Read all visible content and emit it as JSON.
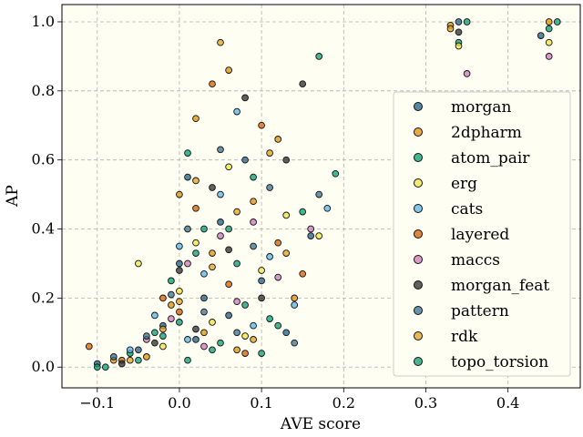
{
  "chart_data": {
    "type": "scatter",
    "title": "",
    "xlabel": "AVE score",
    "ylabel": "AP",
    "xlim": [
      -0.143,
      0.488
    ],
    "ylim": [
      -0.06,
      1.05
    ],
    "xticks": [
      -0.1,
      0.0,
      0.1,
      0.2,
      0.3,
      0.4
    ],
    "xtick_labels": [
      "−0.1",
      "0.0",
      "0.1",
      "0.2",
      "0.3",
      "0.4"
    ],
    "yticks": [
      0.0,
      0.2,
      0.4,
      0.6,
      0.8,
      1.0
    ],
    "ytick_labels": [
      "0.0",
      "0.2",
      "0.4",
      "0.6",
      "0.8",
      "1.0"
    ],
    "grid": true,
    "background": "#fffef3",
    "legend_position": "right",
    "series": [
      {
        "name": "morgan",
        "color": "#1f5f84",
        "points": [
          [
            -0.1,
            0.01
          ],
          [
            -0.05,
            0.05
          ],
          [
            -0.02,
            0.12
          ],
          [
            0.0,
            0.3
          ],
          [
            0.01,
            0.55
          ],
          [
            0.02,
            0.08
          ],
          [
            0.03,
            0.2
          ],
          [
            0.05,
            0.42
          ],
          [
            0.06,
            0.15
          ],
          [
            0.08,
            0.6
          ],
          [
            0.1,
            0.25
          ],
          [
            0.13,
            0.1
          ],
          [
            0.16,
            0.38
          ],
          [
            0.34,
            1.0
          ],
          [
            0.44,
            0.96
          ]
        ]
      },
      {
        "name": "2dpharm",
        "color": "#de8f05",
        "points": [
          [
            -0.08,
            0.02
          ],
          [
            -0.04,
            0.03
          ],
          [
            -0.01,
            0.18
          ],
          [
            0.0,
            0.5
          ],
          [
            0.02,
            0.72
          ],
          [
            0.03,
            0.1
          ],
          [
            0.04,
            0.33
          ],
          [
            0.06,
            0.86
          ],
          [
            0.07,
            0.05
          ],
          [
            0.09,
            0.48
          ],
          [
            0.12,
            0.66
          ],
          [
            0.14,
            0.2
          ],
          [
            0.33,
            0.99
          ],
          [
            0.45,
            1.0
          ]
        ]
      },
      {
        "name": "atom_pair",
        "color": "#029e73",
        "points": [
          [
            -0.09,
            0.0
          ],
          [
            -0.06,
            0.04
          ],
          [
            -0.03,
            0.1
          ],
          [
            -0.01,
            0.25
          ],
          [
            0.01,
            0.62
          ],
          [
            0.03,
            0.4
          ],
          [
            0.05,
            0.07
          ],
          [
            0.07,
            0.3
          ],
          [
            0.09,
            0.55
          ],
          [
            0.11,
            0.14
          ],
          [
            0.15,
            0.45
          ],
          [
            0.19,
            0.56
          ],
          [
            0.34,
            0.94
          ],
          [
            0.45,
            0.98
          ]
        ]
      },
      {
        "name": "erg",
        "color": "#f0e442",
        "points": [
          [
            -0.05,
            0.3
          ],
          [
            -0.02,
            0.06
          ],
          [
            0.0,
            0.22
          ],
          [
            0.02,
            0.36
          ],
          [
            0.04,
            0.13
          ],
          [
            0.06,
            0.58
          ],
          [
            0.08,
            0.09
          ],
          [
            0.1,
            0.28
          ],
          [
            0.13,
            0.44
          ],
          [
            0.17,
            0.38
          ],
          [
            0.34,
            0.93
          ],
          [
            0.45,
            0.94
          ]
        ]
      },
      {
        "name": "cats",
        "color": "#56b4e9",
        "points": [
          [
            -0.06,
            0.05
          ],
          [
            -0.03,
            0.15
          ],
          [
            0.0,
            0.35
          ],
          [
            0.01,
            0.08
          ],
          [
            0.03,
            0.27
          ],
          [
            0.05,
            0.5
          ],
          [
            0.07,
            0.74
          ],
          [
            0.09,
            0.12
          ],
          [
            0.11,
            0.32
          ],
          [
            0.14,
            0.18
          ],
          [
            0.18,
            0.46
          ]
        ]
      },
      {
        "name": "layered",
        "color": "#d55e00",
        "points": [
          [
            -0.11,
            0.06
          ],
          [
            -0.07,
            0.02
          ],
          [
            -0.02,
            0.2
          ],
          [
            0.0,
            0.16
          ],
          [
            0.02,
            0.46
          ],
          [
            0.04,
            0.82
          ],
          [
            0.06,
            0.24
          ],
          [
            0.08,
            0.04
          ],
          [
            0.1,
            0.7
          ],
          [
            0.12,
            0.36
          ],
          [
            0.15,
            0.27
          ]
        ]
      },
      {
        "name": "maccs",
        "color": "#cc78bc",
        "points": [
          [
            -0.04,
            0.08
          ],
          [
            -0.01,
            0.14
          ],
          [
            0.01,
            0.3
          ],
          [
            0.03,
            0.06
          ],
          [
            0.05,
            0.38
          ],
          [
            0.07,
            0.19
          ],
          [
            0.09,
            0.42
          ],
          [
            0.12,
            0.26
          ],
          [
            0.16,
            0.4
          ],
          [
            0.35,
            0.85
          ],
          [
            0.45,
            0.9
          ]
        ]
      },
      {
        "name": "morgan_feat",
        "color": "#2b2b2b",
        "points": [
          [
            -0.07,
            0.01
          ],
          [
            -0.03,
            0.07
          ],
          [
            0.0,
            0.28
          ],
          [
            0.02,
            0.11
          ],
          [
            0.04,
            0.52
          ],
          [
            0.06,
            0.34
          ],
          [
            0.08,
            0.78
          ],
          [
            0.1,
            0.2
          ],
          [
            0.13,
            0.6
          ],
          [
            0.15,
            0.82
          ],
          [
            0.34,
            0.97
          ]
        ]
      },
      {
        "name": "pattern",
        "color": "#3a6f8f",
        "points": [
          [
            -0.08,
            0.03
          ],
          [
            -0.04,
            0.09
          ],
          [
            -0.01,
            0.21
          ],
          [
            0.01,
            0.4
          ],
          [
            0.03,
            0.16
          ],
          [
            0.05,
            0.63
          ],
          [
            0.07,
            0.1
          ],
          [
            0.09,
            0.35
          ],
          [
            0.11,
            0.52
          ],
          [
            0.14,
            0.07
          ],
          [
            0.17,
            0.5
          ]
        ]
      },
      {
        "name": "rdk",
        "color": "#e0a020",
        "points": [
          [
            -0.06,
            0.02
          ],
          [
            -0.02,
            0.11
          ],
          [
            0.0,
            0.19
          ],
          [
            0.02,
            0.54
          ],
          [
            0.04,
            0.29
          ],
          [
            0.05,
            0.94
          ],
          [
            0.07,
            0.45
          ],
          [
            0.09,
            0.08
          ],
          [
            0.11,
            0.62
          ],
          [
            0.13,
            0.33
          ],
          [
            0.33,
            0.98
          ]
        ]
      },
      {
        "name": "topo_torsion",
        "color": "#0b9b74",
        "points": [
          [
            -0.1,
            0.0
          ],
          [
            -0.05,
            0.02
          ],
          [
            -0.02,
            0.09
          ],
          [
            0.0,
            0.13
          ],
          [
            0.01,
            0.02
          ],
          [
            0.02,
            0.33
          ],
          [
            0.04,
            0.05
          ],
          [
            0.06,
            0.4
          ],
          [
            0.08,
            0.18
          ],
          [
            0.1,
            0.04
          ],
          [
            0.12,
            0.12
          ],
          [
            0.17,
            0.9
          ],
          [
            0.35,
            1.0
          ],
          [
            0.46,
            1.0
          ]
        ]
      }
    ]
  }
}
